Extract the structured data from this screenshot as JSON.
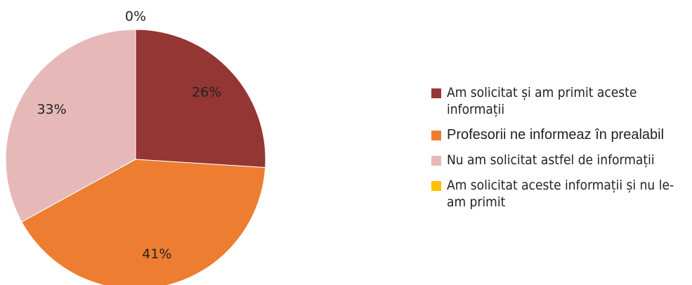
{
  "chart_data": {
    "type": "pie",
    "categories": [
      "Am solicitat și am primit aceste informații",
      "Profesorii ne informeaz  în prealabil",
      "Nu am solicitat astfel de informații",
      "Am solicitat aceste informații și nu le-am primit"
    ],
    "values": [
      26,
      41,
      33,
      0
    ],
    "value_labels": [
      "26%",
      "41%",
      "33%",
      "0%"
    ],
    "colors": [
      "#943634",
      "#ED7D31",
      "#E6B9B8",
      "#FFC000"
    ],
    "legend": "right"
  }
}
